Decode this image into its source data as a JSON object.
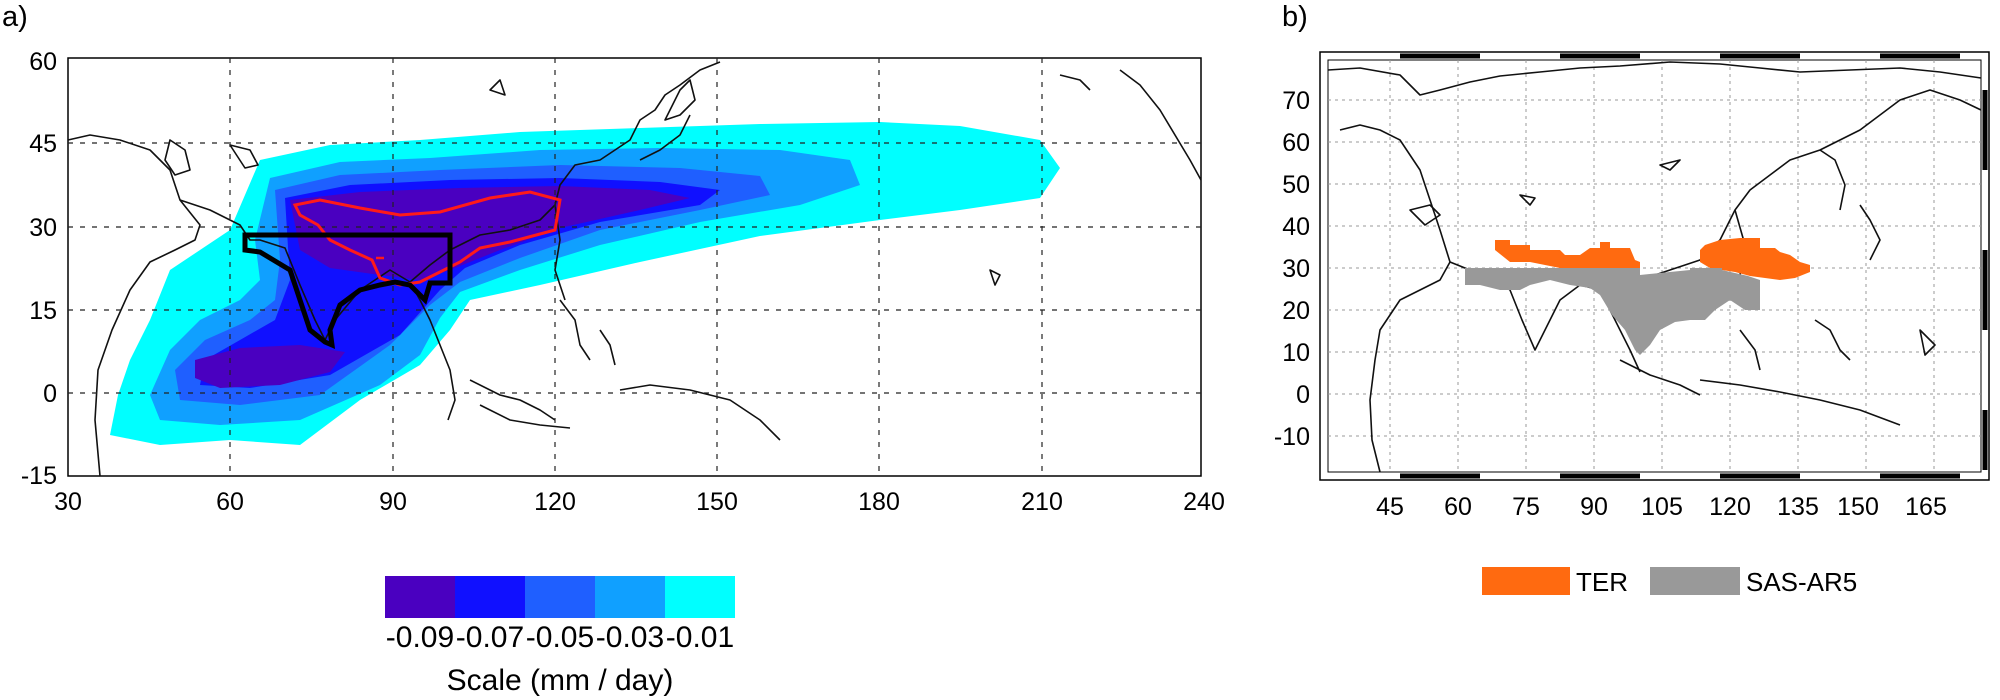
{
  "panel_a": {
    "label": "a)",
    "x_ticks": [
      "30",
      "60",
      "90",
      "120",
      "150",
      "180",
      "210",
      "240"
    ],
    "y_ticks": [
      "60",
      "45",
      "30",
      "15",
      "0",
      "-15"
    ],
    "colorbar": {
      "colors": [
        "#4a00c0",
        "#1010ff",
        "#1f5fff",
        "#10a0ff",
        "#00ffff"
      ],
      "tick_labels": [
        "-0.09",
        "-0.07",
        "-0.05",
        "-0.03",
        "-0.01"
      ],
      "label": "Scale (mm / day)"
    },
    "contour_color": "#ff1a1a",
    "box_color": "#000000"
  },
  "panel_b": {
    "label": "b)",
    "x_ticks": [
      "45",
      "60",
      "75",
      "90",
      "105",
      "120",
      "135",
      "150",
      "165"
    ],
    "y_ticks": [
      "70",
      "60",
      "50",
      "40",
      "30",
      "20",
      "10",
      "0",
      "-10"
    ],
    "legend": [
      {
        "name": "TER",
        "color": "#ff6a10"
      },
      {
        "name": "SAS-AR5",
        "color": "#999999"
      }
    ]
  }
}
